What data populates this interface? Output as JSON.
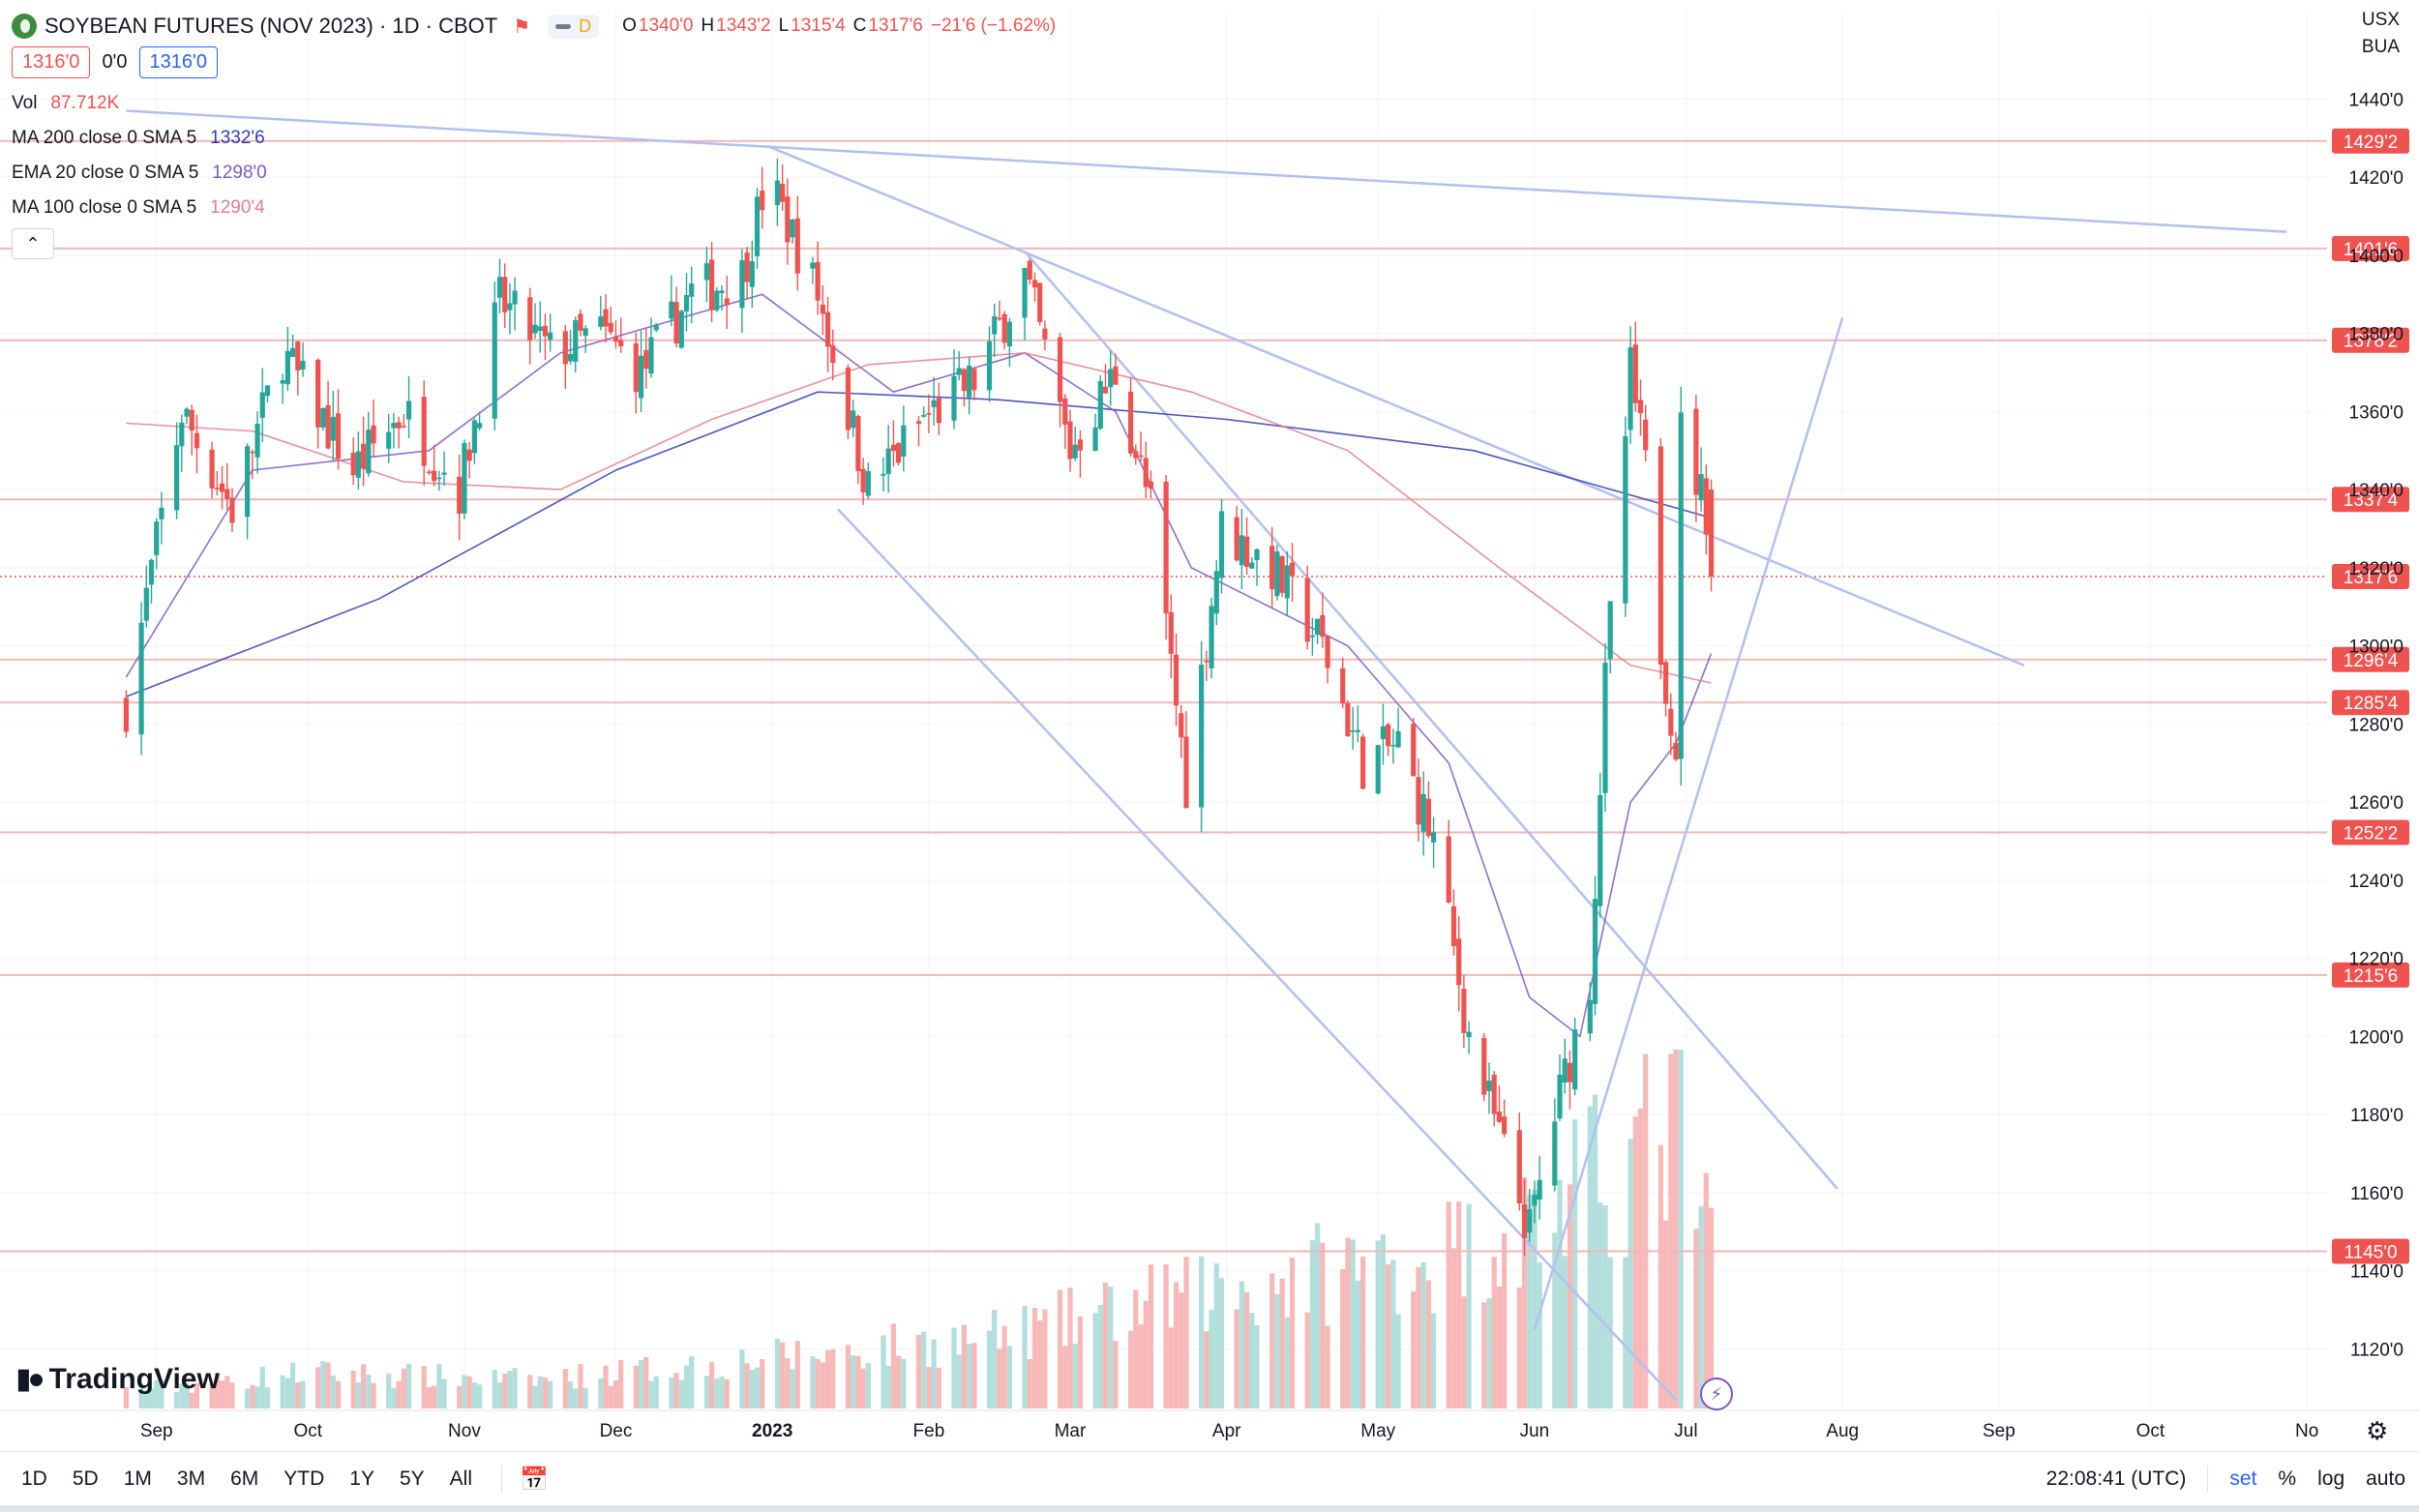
{
  "header": {
    "symbol": "SOYBEAN FUTURES (NOV 2023) · 1D · CBOT",
    "interval_badge": "D",
    "ohlc": [
      {
        "k": "O",
        "v": "1340'0"
      },
      {
        "k": "H",
        "v": "1343'2"
      },
      {
        "k": "L",
        "v": "1315'4"
      },
      {
        "k": "C",
        "v": "1317'6"
      }
    ],
    "change": "−21'6 (−1.62%)",
    "sell_price": "1316'0",
    "spread": "0'0",
    "buy_price": "1316'0"
  },
  "indicators": [
    {
      "label": "Vol",
      "value": "87.712K",
      "color": "#ef5350"
    },
    {
      "label": "MA 200 close 0 SMA 5",
      "value": "1332'6",
      "color": "#2f3bb1"
    },
    {
      "label": "EMA 20 close 0 SMA 5",
      "value": "1298'0",
      "color": "#7e57c2"
    },
    {
      "label": "MA 100 close 0 SMA 5",
      "value": "1290'4",
      "color": "#e57c8f"
    }
  ],
  "currency": "USX",
  "unit": "BUA",
  "branding": "TradingView",
  "bottom_bar": {
    "ranges": [
      "1D",
      "5D",
      "1M",
      "3M",
      "6M",
      "YTD",
      "1Y",
      "5Y",
      "All"
    ],
    "time": "22:08:41 (UTC)",
    "options": [
      "set",
      "%",
      "log",
      "auto"
    ]
  },
  "colors": {
    "up": "#26a69a",
    "down": "#ef5350",
    "line": "#b2c0ef",
    "level": "#f0b7b7"
  },
  "chart_data": {
    "type": "candlestick",
    "y_ticks": [
      "1440'0",
      "1420'0",
      "1400'0",
      "1380'0",
      "1360'0",
      "1340'0",
      "1320'0",
      "1300'0",
      "1280'0",
      "1260'0",
      "1240'0",
      "1220'0",
      "1200'0",
      "1180'0",
      "1160'0",
      "1140'0",
      "1120'0"
    ],
    "x_ticks": [
      "Sep",
      "Oct",
      "Nov",
      "Dec",
      "2023",
      "Feb",
      "Mar",
      "Apr",
      "May",
      "Jun",
      "Jul",
      "Aug",
      "Sep",
      "Oct",
      "No"
    ],
    "level_labels": [
      {
        "value": 1429.25,
        "label": "1429'2"
      },
      {
        "value": 1401.75,
        "label": "1401'6"
      },
      {
        "value": 1378.25,
        "label": "1378'2"
      },
      {
        "value": 1337.5,
        "label": "1337'4"
      },
      {
        "value": 1296.5,
        "label": "1296'4"
      },
      {
        "value": 1285.5,
        "label": "1285'4"
      },
      {
        "value": 1252.25,
        "label": "1252'2"
      },
      {
        "value": 1215.75,
        "label": "1215'6"
      },
      {
        "value": 1145.0,
        "label": "1145'0"
      }
    ],
    "last_price": {
      "value": 1317.75,
      "label": "1317'6"
    },
    "price_path": [
      {
        "d": "2022-08-26",
        "p": 1285
      },
      {
        "d": "2022-09-06",
        "p": 1360
      },
      {
        "d": "2022-09-16",
        "p": 1335
      },
      {
        "d": "2022-09-26",
        "p": 1375
      },
      {
        "d": "2022-10-10",
        "p": 1345
      },
      {
        "d": "2022-10-20",
        "p": 1360
      },
      {
        "d": "2022-10-31",
        "p": 1340
      },
      {
        "d": "2022-11-08",
        "p": 1388
      },
      {
        "d": "2022-11-18",
        "p": 1375
      },
      {
        "d": "2022-11-28",
        "p": 1380
      },
      {
        "d": "2022-12-06",
        "p": 1370
      },
      {
        "d": "2022-12-16",
        "p": 1390
      },
      {
        "d": "2022-12-26",
        "p": 1395
      },
      {
        "d": "2022-12-31",
        "p": 1420
      },
      {
        "d": "2023-01-10",
        "p": 1390
      },
      {
        "d": "2023-01-20",
        "p": 1340
      },
      {
        "d": "2023-01-31",
        "p": 1358
      },
      {
        "d": "2023-02-10",
        "p": 1368
      },
      {
        "d": "2023-02-20",
        "p": 1395
      },
      {
        "d": "2023-03-01",
        "p": 1350
      },
      {
        "d": "2023-03-10",
        "p": 1370
      },
      {
        "d": "2023-03-17",
        "p": 1335
      },
      {
        "d": "2023-03-24",
        "p": 1265
      },
      {
        "d": "2023-03-31",
        "p": 1330
      },
      {
        "d": "2023-04-10",
        "p": 1320
      },
      {
        "d": "2023-04-20",
        "p": 1300
      },
      {
        "d": "2023-04-28",
        "p": 1270
      },
      {
        "d": "2023-05-05",
        "p": 1275
      },
      {
        "d": "2023-05-12",
        "p": 1250
      },
      {
        "d": "2023-05-19",
        "p": 1200
      },
      {
        "d": "2023-05-26",
        "p": 1170
      },
      {
        "d": "2023-05-31",
        "p": 1150
      },
      {
        "d": "2023-06-05",
        "p": 1180
      },
      {
        "d": "2023-06-12",
        "p": 1215
      },
      {
        "d": "2023-06-15",
        "p": 1290
      },
      {
        "d": "2023-06-20",
        "p": 1370
      },
      {
        "d": "2023-06-23",
        "p": 1345
      },
      {
        "d": "2023-06-26",
        "p": 1300
      },
      {
        "d": "2023-06-29",
        "p": 1275
      },
      {
        "d": "2023-06-30",
        "p": 1355
      },
      {
        "d": "2023-07-05",
        "p": 1335
      },
      {
        "d": "2023-07-06",
        "p": 1317.75
      }
    ],
    "ma200": [
      {
        "d": "2022-08-26",
        "p": 1287
      },
      {
        "d": "2022-10-15",
        "p": 1312
      },
      {
        "d": "2022-12-01",
        "p": 1345
      },
      {
        "d": "2023-01-10",
        "p": 1365
      },
      {
        "d": "2023-02-15",
        "p": 1363
      },
      {
        "d": "2023-04-01",
        "p": 1358
      },
      {
        "d": "2023-05-20",
        "p": 1350
      },
      {
        "d": "2023-07-06",
        "p": 1332.75
      }
    ],
    "ema20": [
      {
        "d": "2022-08-26",
        "p": 1292
      },
      {
        "d": "2022-09-20",
        "p": 1345
      },
      {
        "d": "2022-10-25",
        "p": 1350
      },
      {
        "d": "2022-11-20",
        "p": 1375
      },
      {
        "d": "2022-12-30",
        "p": 1390
      },
      {
        "d": "2023-01-25",
        "p": 1365
      },
      {
        "d": "2023-02-20",
        "p": 1375
      },
      {
        "d": "2023-03-10",
        "p": 1360
      },
      {
        "d": "2023-03-25",
        "p": 1320
      },
      {
        "d": "2023-04-25",
        "p": 1300
      },
      {
        "d": "2023-05-15",
        "p": 1270
      },
      {
        "d": "2023-05-31",
        "p": 1210
      },
      {
        "d": "2023-06-10",
        "p": 1200
      },
      {
        "d": "2023-06-20",
        "p": 1260
      },
      {
        "d": "2023-06-29",
        "p": 1275
      },
      {
        "d": "2023-07-06",
        "p": 1298
      }
    ],
    "ma100": [
      {
        "d": "2022-08-26",
        "p": 1357
      },
      {
        "d": "2022-09-20",
        "p": 1355
      },
      {
        "d": "2022-10-20",
        "p": 1342
      },
      {
        "d": "2022-11-20",
        "p": 1340
      },
      {
        "d": "2022-12-20",
        "p": 1358
      },
      {
        "d": "2023-01-20",
        "p": 1372
      },
      {
        "d": "2023-02-20",
        "p": 1375
      },
      {
        "d": "2023-03-25",
        "p": 1365
      },
      {
        "d": "2023-04-25",
        "p": 1350
      },
      {
        "d": "2023-05-25",
        "p": 1320
      },
      {
        "d": "2023-06-20",
        "p": 1295
      },
      {
        "d": "2023-07-06",
        "p": 1290.5
      }
    ],
    "trend_lines": [
      {
        "from": {
          "d": "2022-08-26",
          "p": 1437
        },
        "to": {
          "d": "2023-10-28",
          "p": 1406
        }
      },
      {
        "from": {
          "d": "2022-12-31",
          "p": 1428
        },
        "to": {
          "d": "2023-09-06",
          "p": 1295
        }
      },
      {
        "from": {
          "d": "2023-02-20",
          "p": 1401
        },
        "to": {
          "d": "2023-07-31",
          "p": 1161
        }
      },
      {
        "from": {
          "d": "2023-01-14",
          "p": 1335
        },
        "to": {
          "d": "2023-06-29",
          "p": 1107
        }
      },
      {
        "from": {
          "d": "2023-06-01",
          "p": 1125
        },
        "to": {
          "d": "2023-08-01",
          "p": 1384
        }
      }
    ],
    "volume_path": [
      {
        "d": "2022-08-26",
        "v": 5
      },
      {
        "d": "2022-10-01",
        "v": 10
      },
      {
        "d": "2022-11-15",
        "v": 8
      },
      {
        "d": "2023-01-01",
        "v": 14
      },
      {
        "d": "2023-02-15",
        "v": 20
      },
      {
        "d": "2023-03-20",
        "v": 30
      },
      {
        "d": "2023-04-20",
        "v": 38
      },
      {
        "d": "2023-05-20",
        "v": 45
      },
      {
        "d": "2023-06-05",
        "v": 55
      },
      {
        "d": "2023-06-20",
        "v": 70
      },
      {
        "d": "2023-06-30",
        "v": 80
      },
      {
        "d": "2023-07-06",
        "v": 45
      }
    ],
    "volume_peak": 100,
    "x_range": [
      "2022-08-01",
      "2023-11-05"
    ],
    "y_range": [
      1105,
      1450
    ],
    "grid": true
  }
}
